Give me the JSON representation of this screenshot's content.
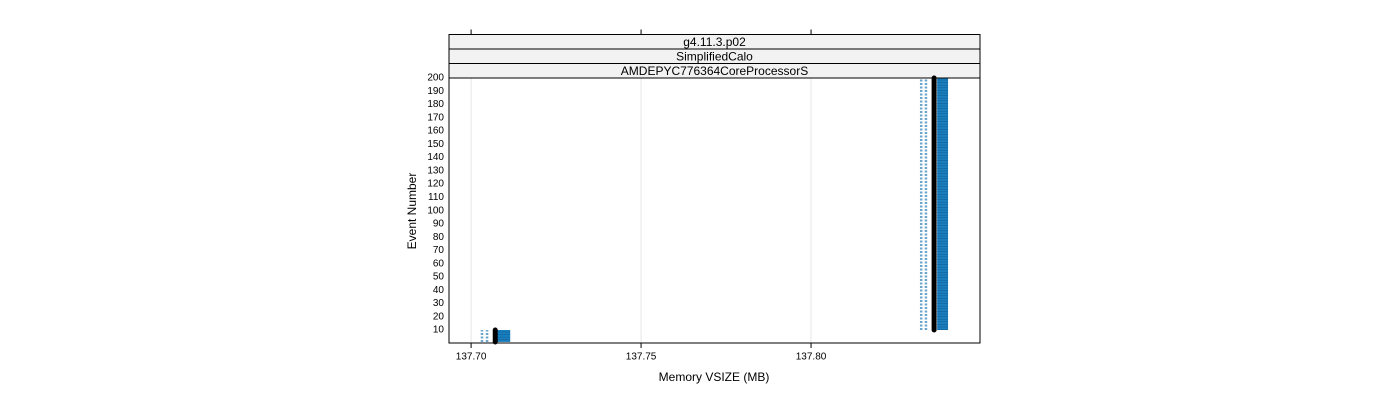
{
  "chart_data": {
    "type": "line",
    "strips": [
      "g4.11.3.p02",
      "SimplifiedCalo",
      "AMDEPYC776364CoreProcessorS"
    ],
    "x_label": "Memory VSIZE (MB)",
    "y_label": "Event Number",
    "xlim": [
      137.6935,
      137.8497
    ],
    "ylim": [
      0.2,
      200
    ],
    "xticks": [
      {
        "value": 137.7,
        "label": "137.70"
      },
      {
        "value": 137.75,
        "label": "137.75"
      },
      {
        "value": 137.8,
        "label": "137.80"
      }
    ],
    "yticks": [
      10,
      20,
      30,
      40,
      50,
      60,
      70,
      80,
      90,
      100,
      110,
      120,
      130,
      140,
      150,
      160,
      170,
      180,
      190,
      200
    ],
    "grid": true,
    "bands": [
      {
        "color": "#1a7fbf",
        "x0": 137.7076,
        "x1": 137.7115,
        "y0": 1,
        "y1": 10
      },
      {
        "color": "#1a7fbf",
        "x0": 137.8371,
        "x1": 137.8403,
        "y0": 10,
        "y1": 200
      }
    ],
    "series": [
      {
        "color": "#6aa6cc",
        "style": "dashed",
        "x": [
          137.7032,
          137.7032,
          null,
          137.8324,
          137.8324
        ],
        "y": [
          1,
          10,
          null,
          10,
          200
        ]
      },
      {
        "color": "#6aa6cc",
        "style": "dashed",
        "x": [
          137.7047,
          137.7047,
          null,
          137.8338,
          137.8338
        ],
        "y": [
          1,
          10,
          null,
          10,
          200
        ]
      },
      {
        "color": "#000000",
        "style": "thick",
        "x": [
          137.7071,
          137.7071,
          null,
          137.8362,
          137.8362
        ],
        "y": [
          1,
          10,
          null,
          10,
          200
        ]
      }
    ]
  }
}
